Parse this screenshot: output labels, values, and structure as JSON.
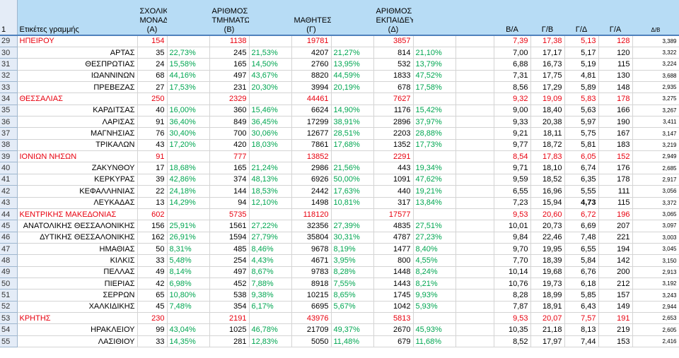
{
  "header": {
    "row_number": "1",
    "label": "Ετικέτες γραμμής",
    "col_a": "ΣΧΟΛΙΚΕΣ ΜΟΝΑΔΕΣ (Α)",
    "col_b": "ΑΡΙΘΜΟΣ ΤΜΗΜΑΤΩΝ (Β)",
    "col_c": "ΜΑΘΗΤΕΣ (Γ)",
    "col_d": "ΑΡΙΘΜΟΣ ΕΚΠΑΙΔΕΥΤΙΚΩΝ (Δ)",
    "col_ba": "Β/Α",
    "col_gb": "Γ/Β",
    "col_gd": "Γ/Δ",
    "col_ga": "Γ/Α",
    "col_db": "Δ/Β"
  },
  "rows": [
    {
      "n": "29",
      "region": true,
      "label": "ΗΠΕΙΡΟΥ",
      "a": "154",
      "pa": "",
      "b": "1138",
      "pb": "",
      "c": "19781",
      "pc": "",
      "d": "3857",
      "pd": "",
      "ba": "7,39",
      "gb": "17,38",
      "gd": "5,13",
      "ga": "128",
      "db": "3,389"
    },
    {
      "n": "30",
      "label": "ΑΡΤΑΣ",
      "a": "35",
      "pa": "22,73%",
      "b": "245",
      "pb": "21,53%",
      "c": "4207",
      "pc": "21,27%",
      "d": "814",
      "pd": "21,10%",
      "ba": "7,00",
      "gb": "17,17",
      "gd": "5,17",
      "ga": "120",
      "db": "3,322"
    },
    {
      "n": "31",
      "label": "ΘΕΣΠΡΩΤΙΑΣ",
      "a": "24",
      "pa": "15,58%",
      "b": "165",
      "pb": "14,50%",
      "c": "2760",
      "pc": "13,95%",
      "d": "532",
      "pd": "13,79%",
      "ba": "6,88",
      "gb": "16,73",
      "gd": "5,19",
      "ga": "115",
      "db": "3,224"
    },
    {
      "n": "32",
      "label": "ΙΩΑΝΝΙΝΩΝ",
      "a": "68",
      "pa": "44,16%",
      "b": "497",
      "pb": "43,67%",
      "c": "8820",
      "pc": "44,59%",
      "d": "1833",
      "pd": "47,52%",
      "ba": "7,31",
      "gb": "17,75",
      "gd": "4,81",
      "ga": "130",
      "db": "3,688"
    },
    {
      "n": "33",
      "label": "ΠΡΕΒΕΖΑΣ",
      "a": "27",
      "pa": "17,53%",
      "b": "231",
      "pb": "20,30%",
      "c": "3994",
      "pc": "20,19%",
      "d": "678",
      "pd": "17,58%",
      "ba": "8,56",
      "gb": "17,29",
      "gd": "5,89",
      "ga": "148",
      "db": "2,935"
    },
    {
      "n": "34",
      "region": true,
      "label": "ΘΕΣΣΑΛΙΑΣ",
      "a": "250",
      "pa": "",
      "b": "2329",
      "pb": "",
      "c": "44461",
      "pc": "",
      "d": "7627",
      "pd": "",
      "ba": "9,32",
      "gb": "19,09",
      "gd": "5,83",
      "ga": "178",
      "db": "3,275"
    },
    {
      "n": "35",
      "label": "ΚΑΡΔΙΤΣΑΣ",
      "a": "40",
      "pa": "16,00%",
      "b": "360",
      "pb": "15,46%",
      "c": "6624",
      "pc": "14,90%",
      "d": "1176",
      "pd": "15,42%",
      "ba": "9,00",
      "gb": "18,40",
      "gd": "5,63",
      "ga": "166",
      "db": "3,267"
    },
    {
      "n": "36",
      "label": "ΛΑΡΙΣΑΣ",
      "a": "91",
      "pa": "36,40%",
      "b": "849",
      "pb": "36,45%",
      "c": "17299",
      "pc": "38,91%",
      "d": "2896",
      "pd": "37,97%",
      "ba": "9,33",
      "gb": "20,38",
      "gd": "5,97",
      "ga": "190",
      "db": "3,411"
    },
    {
      "n": "37",
      "label": "ΜΑΓΝΗΣΙΑΣ",
      "a": "76",
      "pa": "30,40%",
      "b": "700",
      "pb": "30,06%",
      "c": "12677",
      "pc": "28,51%",
      "d": "2203",
      "pd": "28,88%",
      "ba": "9,21",
      "gb": "18,11",
      "gd": "5,75",
      "ga": "167",
      "db": "3,147"
    },
    {
      "n": "38",
      "label": "ΤΡΙΚΑΛΩΝ",
      "a": "43",
      "pa": "17,20%",
      "b": "420",
      "pb": "18,03%",
      "c": "7861",
      "pc": "17,68%",
      "d": "1352",
      "pd": "17,73%",
      "ba": "9,77",
      "gb": "18,72",
      "gd": "5,81",
      "ga": "183",
      "db": "3,219"
    },
    {
      "n": "39",
      "region": true,
      "label": "ΙΟΝΙΩΝ ΝΗΣΩΝ",
      "a": "91",
      "pa": "",
      "b": "777",
      "pb": "",
      "c": "13852",
      "pc": "",
      "d": "2291",
      "pd": "",
      "ba": "8,54",
      "gb": "17,83",
      "gd": "6,05",
      "ga": "152",
      "db": "2,949"
    },
    {
      "n": "40",
      "label": "ΖΑΚΥΝΘΟΥ",
      "a": "17",
      "pa": "18,68%",
      "b": "165",
      "pb": "21,24%",
      "c": "2986",
      "pc": "21,56%",
      "d": "443",
      "pd": "19,34%",
      "ba": "9,71",
      "gb": "18,10",
      "gd": "6,74",
      "ga": "176",
      "db": "2,685"
    },
    {
      "n": "41",
      "label": "ΚΕΡΚΥΡΑΣ",
      "a": "39",
      "pa": "42,86%",
      "b": "374",
      "pb": "48,13%",
      "c": "6926",
      "pc": "50,00%",
      "d": "1091",
      "pd": "47,62%",
      "ba": "9,59",
      "gb": "18,52",
      "gd": "6,35",
      "ga": "178",
      "db": "2,917"
    },
    {
      "n": "42",
      "label": "ΚΕΦΑΛΛΗΝΙΑΣ",
      "a": "22",
      "pa": "24,18%",
      "b": "144",
      "pb": "18,53%",
      "c": "2442",
      "pc": "17,63%",
      "d": "440",
      "pd": "19,21%",
      "ba": "6,55",
      "gb": "16,96",
      "gd": "5,55",
      "ga": "111",
      "db": "3,056"
    },
    {
      "n": "43",
      "label": "ΛΕΥΚΑΔΑΣ",
      "a": "13",
      "pa": "14,29%",
      "b": "94",
      "pb": "12,10%",
      "c": "1498",
      "pc": "10,81%",
      "d": "317",
      "pd": "13,84%",
      "ba": "7,23",
      "gb": "15,94",
      "gd": "4,73",
      "gdBold": true,
      "ga": "115",
      "db": "3,372"
    },
    {
      "n": "44",
      "region": true,
      "label": "ΚΕΝΤΡΙΚΗΣ ΜΑΚΕΔΟΝΙΑΣ",
      "a": "602",
      "pa": "",
      "b": "5735",
      "pb": "",
      "c": "118120",
      "pc": "",
      "d": "17577",
      "pd": "",
      "ba": "9,53",
      "gb": "20,60",
      "gd": "6,72",
      "ga": "196",
      "db": "3,065"
    },
    {
      "n": "45",
      "label": "ΑΝΑΤΟΛΙΚΗΣ ΘΕΣΣΑΛΟΝΙΚΗΣ",
      "a": "156",
      "pa": "25,91%",
      "b": "1561",
      "pb": "27,22%",
      "c": "32356",
      "pc": "27,39%",
      "d": "4835",
      "pd": "27,51%",
      "ba": "10,01",
      "gb": "20,73",
      "gd": "6,69",
      "ga": "207",
      "db": "3,097"
    },
    {
      "n": "46",
      "label": "ΔΥΤΙΚΗΣ ΘΕΣΣΑΛΟΝΙΚΗΣ",
      "a": "162",
      "pa": "26,91%",
      "b": "1594",
      "pb": "27,79%",
      "c": "35804",
      "pc": "30,31%",
      "d": "4787",
      "pd": "27,23%",
      "ba": "9,84",
      "gb": "22,46",
      "gd": "7,48",
      "ga": "221",
      "db": "3,003"
    },
    {
      "n": "47",
      "label": "ΗΜΑΘΙΑΣ",
      "a": "50",
      "pa": "8,31%",
      "b": "485",
      "pb": "8,46%",
      "c": "9678",
      "pc": "8,19%",
      "d": "1477",
      "pd": "8,40%",
      "ba": "9,70",
      "gb": "19,95",
      "gd": "6,55",
      "ga": "194",
      "db": "3,045"
    },
    {
      "n": "48",
      "label": "ΚΙΛΚΙΣ",
      "a": "33",
      "pa": "5,48%",
      "b": "254",
      "pb": "4,43%",
      "c": "4671",
      "pc": "3,95%",
      "d": "800",
      "pd": "4,55%",
      "ba": "7,70",
      "gb": "18,39",
      "gd": "5,84",
      "ga": "142",
      "db": "3,150"
    },
    {
      "n": "49",
      "label": "ΠΕΛΛΑΣ",
      "a": "49",
      "pa": "8,14%",
      "b": "497",
      "pb": "8,67%",
      "c": "9783",
      "pc": "8,28%",
      "d": "1448",
      "pd": "8,24%",
      "ba": "10,14",
      "gb": "19,68",
      "gd": "6,76",
      "ga": "200",
      "db": "2,913"
    },
    {
      "n": "50",
      "label": "ΠΙΕΡΙΑΣ",
      "a": "42",
      "pa": "6,98%",
      "b": "452",
      "pb": "7,88%",
      "c": "8918",
      "pc": "7,55%",
      "d": "1443",
      "pd": "8,21%",
      "ba": "10,76",
      "gb": "19,73",
      "gd": "6,18",
      "ga": "212",
      "db": "3,192"
    },
    {
      "n": "51",
      "label": "ΣΕΡΡΩΝ",
      "a": "65",
      "pa": "10,80%",
      "b": "538",
      "pb": "9,38%",
      "c": "10215",
      "pc": "8,65%",
      "d": "1745",
      "pd": "9,93%",
      "ba": "8,28",
      "gb": "18,99",
      "gd": "5,85",
      "ga": "157",
      "db": "3,243"
    },
    {
      "n": "52",
      "label": "ΧΑΛΚΙΔΙΚΗΣ",
      "a": "45",
      "pa": "7,48%",
      "b": "354",
      "pb": "6,17%",
      "c": "6695",
      "pc": "5,67%",
      "d": "1042",
      "pd": "5,93%",
      "ba": "7,87",
      "gb": "18,91",
      "gd": "6,43",
      "ga": "149",
      "db": "2,944"
    },
    {
      "n": "53",
      "region": true,
      "label": "ΚΡΗΤΗΣ",
      "a": "230",
      "pa": "",
      "b": "2191",
      "pb": "",
      "c": "43976",
      "pc": "",
      "d": "5813",
      "pd": "",
      "ba": "9,53",
      "gb": "20,07",
      "gd": "7,57",
      "ga": "191",
      "db": "2,653"
    },
    {
      "n": "54",
      "label": "ΗΡΑΚΛΕΙΟΥ",
      "a": "99",
      "pa": "43,04%",
      "b": "1025",
      "pb": "46,78%",
      "c": "21709",
      "pc": "49,37%",
      "d": "2670",
      "pd": "45,93%",
      "ba": "10,35",
      "gb": "21,18",
      "gd": "8,13",
      "ga": "219",
      "db": "2,605"
    },
    {
      "n": "55",
      "label": "ΛΑΣΙΘΙΟΥ",
      "a": "33",
      "pa": "14,35%",
      "b": "281",
      "pb": "12,83%",
      "c": "5050",
      "pc": "11,48%",
      "d": "679",
      "pd": "11,68%",
      "ba": "8,52",
      "gb": "17,97",
      "gd": "7,44",
      "ga": "153",
      "db": "2,416"
    }
  ]
}
